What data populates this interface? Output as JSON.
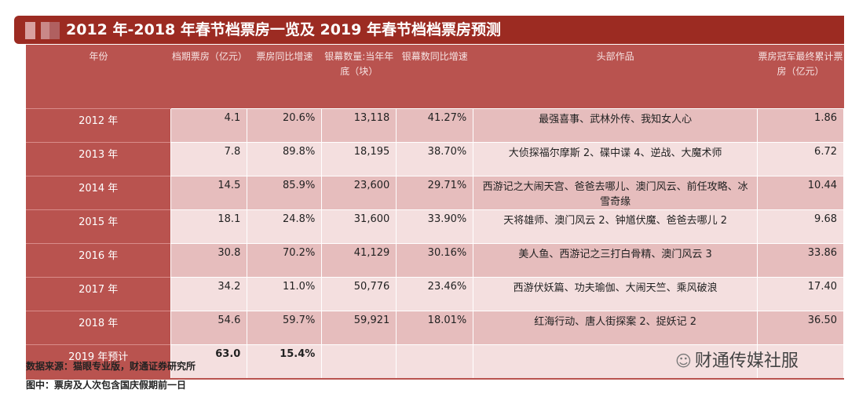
{
  "title": "2012 年-2018 年春节档票房一览及 2019 年春节档档票房预测",
  "columns": [
    "年份",
    "档期票房（亿元）",
    "票房同比增速",
    "银幕数量:当年年底（块）",
    "银幕数同比增速",
    "头部作品",
    "票房冠军最终累计票房（亿元）"
  ],
  "rows": [
    [
      "2012 年",
      "4.1",
      "20.6%",
      "13,118",
      "41.27%",
      "最强喜事、武林外传、我知女人心",
      "1.86"
    ],
    [
      "2013 年",
      "7.8",
      "89.8%",
      "18,195",
      "38.70%",
      "大侦探福尔摩斯 2、碟中谍 4、逆战、大魔术师",
      "6.72"
    ],
    [
      "2014 年",
      "14.5",
      "85.9%",
      "23,600",
      "29.71%",
      "西游记之大闹天宫、爸爸去哪儿、澳门风云、前任攻略、冰雪奇缘",
      "10.44"
    ],
    [
      "2015 年",
      "18.1",
      "24.8%",
      "31,600",
      "33.90%",
      "天将雄师、澳门风云 2、钟馗伏魔、爸爸去哪儿 2",
      "9.68"
    ],
    [
      "2016 年",
      "30.8",
      "70.2%",
      "41,129",
      "30.16%",
      "美人鱼、西游记之三打白骨精、澳门风云 3",
      "33.86"
    ],
    [
      "2017 年",
      "34.2",
      "11.0%",
      "50,776",
      "23.46%",
      "西游伏妖篇、功夫瑜伽、大闹天竺、乘风破浪",
      "17.40"
    ],
    [
      "2018 年",
      "54.6",
      "59.7%",
      "59,921",
      "18.01%",
      "红海行动、唐人街探案 2、捉妖记 2",
      "36.50"
    ],
    [
      "2019 年预计",
      "63.0",
      "15.4%",
      "",
      "",
      "",
      ""
    ]
  ],
  "footer": {
    "source": "数据来源：猫眼专业版，财通证券研究所",
    "note": "图中：票房及人次包含国庆假期前一日"
  },
  "watermark": "财通传媒社服",
  "colors": {
    "title_bg": "#9c2b22",
    "header_bg": "#b9534f",
    "row_odd": "#e6bdbd",
    "row_even": "#f4dfdf"
  }
}
